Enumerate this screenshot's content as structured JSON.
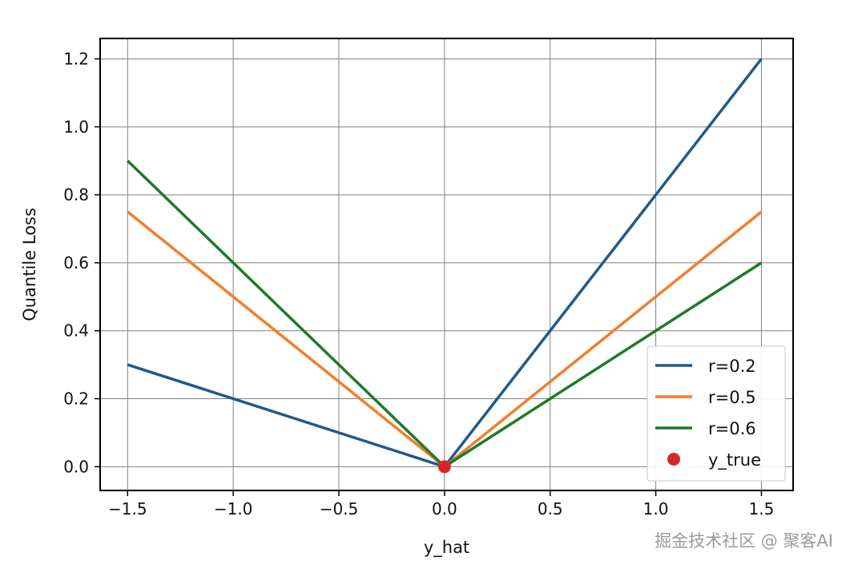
{
  "chart_data": {
    "type": "line",
    "xlabel": "y_hat",
    "ylabel": "Quantile Loss",
    "xlim": [
      -1.63,
      1.65
    ],
    "ylim": [
      -0.07,
      1.26
    ],
    "xticks": [
      -1.5,
      -1.0,
      -0.5,
      0.0,
      0.5,
      1.0,
      1.5
    ],
    "xtick_labels": [
      "−1.5",
      "−1.0",
      "−0.5",
      "0.0",
      "0.5",
      "1.0",
      "1.5"
    ],
    "yticks": [
      0.0,
      0.2,
      0.4,
      0.6,
      0.8,
      1.0,
      1.2
    ],
    "ytick_labels": [
      "0.0",
      "0.2",
      "0.4",
      "0.6",
      "0.8",
      "1.0",
      "1.2"
    ],
    "grid": true,
    "legend": "lower-right",
    "series": [
      {
        "name": "r=0.2",
        "color": "#1f5a8a",
        "x": [
          -1.5,
          0.0,
          1.5
        ],
        "y": [
          0.3,
          0.0,
          1.2
        ]
      },
      {
        "name": "r=0.5",
        "color": "#f07f2a",
        "x": [
          -1.5,
          0.0,
          1.5
        ],
        "y": [
          0.75,
          0.0,
          0.75
        ]
      },
      {
        "name": "r=0.6",
        "color": "#1e7a2a",
        "x": [
          -1.5,
          0.0,
          1.5
        ],
        "y": [
          0.9,
          0.0,
          0.6
        ]
      }
    ],
    "points": [
      {
        "name": "y_true",
        "color": "#d62728",
        "x": 0.0,
        "y": 0.0
      }
    ]
  },
  "watermark": "掘金技术社区 @ 聚客AI"
}
